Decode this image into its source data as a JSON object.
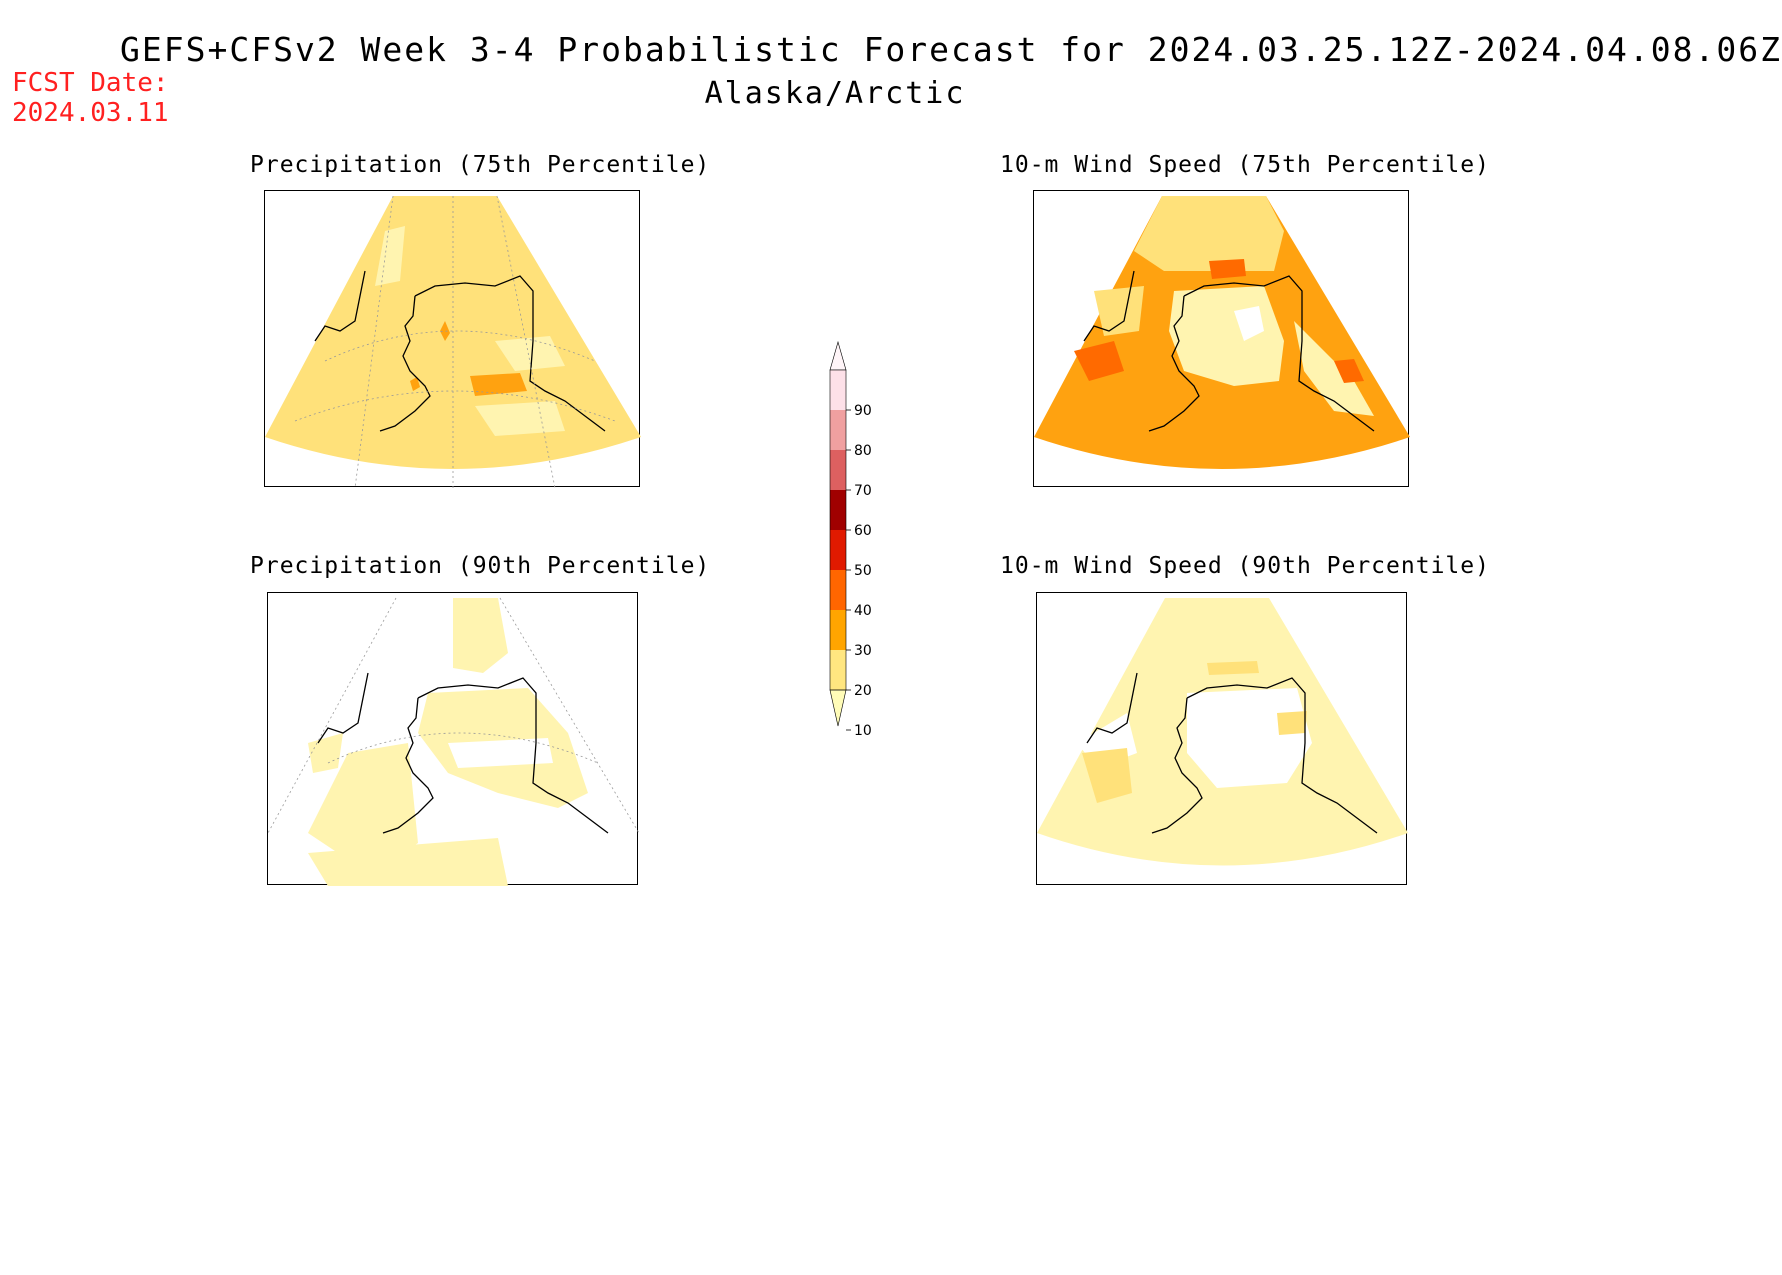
{
  "header": {
    "title": "GEFS+CFSv2 Week 3-4 Probabilistic Forecast for 2024.03.25.12Z-2024.04.08.06Z",
    "subtitle": "Alaska/Arctic",
    "fcst_label": "FCST Date:",
    "fcst_date": "2024.03.11"
  },
  "panels": [
    {
      "title": "Precipitation (75th Percentile)"
    },
    {
      "title": "10-m Wind Speed (75th Percentile)"
    },
    {
      "title": "Precipitation (90th Percentile)"
    },
    {
      "title": "10-m Wind Speed (90th Percentile)"
    }
  ],
  "colorbar": {
    "levels": [
      "10",
      "20",
      "30",
      "40",
      "50",
      "60",
      "70",
      "80",
      "90"
    ],
    "colors": [
      "#fffcb8",
      "#ffe680",
      "#ffa500",
      "#ff6600",
      "#e01a00",
      "#a00000",
      "#dd6060",
      "#f0a0a0",
      "#fde0e8",
      "#fff5f8"
    ]
  },
  "palette": {
    "light_yellow": "#fff4b0",
    "yellow": "#ffe17a",
    "orange": "#ffa210",
    "dark_orange": "#ff6a00",
    "coast": "#000000",
    "grid": "#999999"
  }
}
